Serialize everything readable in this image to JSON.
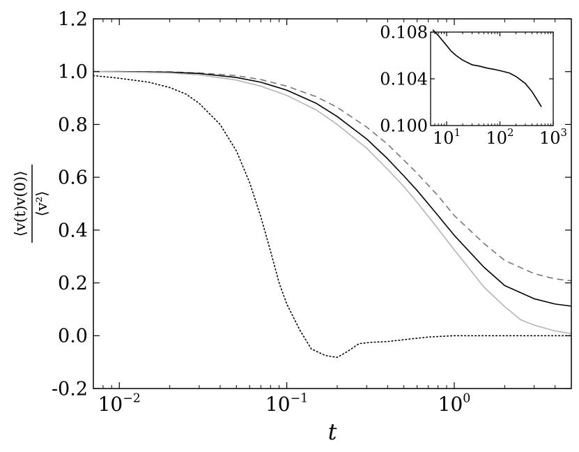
{
  "chart_data": [
    {
      "type": "line",
      "xlabel": "t",
      "ylabel": "⟨v(t)v(0)⟩ / ⟨v²⟩",
      "xscale": "log",
      "xlim": [
        0.007,
        5.0
      ],
      "ylim": [
        -0.2,
        1.2
      ],
      "yticks": [
        -0.2,
        0.0,
        0.2,
        0.4,
        0.6,
        0.8,
        1.0,
        1.2
      ],
      "ytick_labels": [
        "-0.2",
        "0.0",
        "0.2",
        "0.4",
        "0.6",
        "0.8",
        "1.0",
        "1.2"
      ],
      "xticks": [
        0.01,
        0.1,
        1.0
      ],
      "xtick_labels": [
        {
          "base": "10",
          "exp": "−2"
        },
        {
          "base": "10",
          "exp": "−1"
        },
        {
          "base": "10",
          "exp": "0"
        }
      ],
      "grid": false,
      "series": [
        {
          "style": "dashed",
          "color": "#777777",
          "points": [
            [
              0.007,
              1.0
            ],
            [
              0.01,
              1.0
            ],
            [
              0.02,
              0.999
            ],
            [
              0.03,
              0.995
            ],
            [
              0.05,
              0.985
            ],
            [
              0.07,
              0.97
            ],
            [
              0.1,
              0.945
            ],
            [
              0.15,
              0.905
            ],
            [
              0.2,
              0.865
            ],
            [
              0.3,
              0.79
            ],
            [
              0.4,
              0.725
            ],
            [
              0.5,
              0.665
            ],
            [
              0.6,
              0.615
            ],
            [
              0.8,
              0.53
            ],
            [
              1.0,
              0.455
            ],
            [
              1.5,
              0.35
            ],
            [
              2.0,
              0.285
            ],
            [
              3.0,
              0.235
            ],
            [
              4.0,
              0.215
            ],
            [
              5.0,
              0.208
            ]
          ]
        },
        {
          "style": "solid",
          "color": "#000000",
          "points": [
            [
              0.007,
              1.0
            ],
            [
              0.01,
              1.0
            ],
            [
              0.02,
              0.998
            ],
            [
              0.03,
              0.993
            ],
            [
              0.05,
              0.978
            ],
            [
              0.07,
              0.96
            ],
            [
              0.1,
              0.93
            ],
            [
              0.15,
              0.88
            ],
            [
              0.2,
              0.83
            ],
            [
              0.3,
              0.745
            ],
            [
              0.4,
              0.67
            ],
            [
              0.5,
              0.605
            ],
            [
              0.6,
              0.55
            ],
            [
              0.8,
              0.455
            ],
            [
              1.0,
              0.38
            ],
            [
              1.5,
              0.26
            ],
            [
              2.0,
              0.19
            ],
            [
              3.0,
              0.14
            ],
            [
              4.0,
              0.12
            ],
            [
              5.0,
              0.112
            ]
          ]
        },
        {
          "style": "solid",
          "color": "#b4b4b4",
          "points": [
            [
              0.007,
              1.0
            ],
            [
              0.01,
              0.999
            ],
            [
              0.02,
              0.995
            ],
            [
              0.03,
              0.988
            ],
            [
              0.05,
              0.968
            ],
            [
              0.07,
              0.945
            ],
            [
              0.1,
              0.91
            ],
            [
              0.15,
              0.855
            ],
            [
              0.2,
              0.8
            ],
            [
              0.3,
              0.71
            ],
            [
              0.4,
              0.63
            ],
            [
              0.5,
              0.565
            ],
            [
              0.6,
              0.505
            ],
            [
              0.8,
              0.405
            ],
            [
              1.0,
              0.325
            ],
            [
              1.5,
              0.185
            ],
            [
              2.0,
              0.11
            ],
            [
              2.5,
              0.06
            ],
            [
              3.0,
              0.04
            ],
            [
              4.0,
              0.018
            ],
            [
              5.0,
              0.008
            ]
          ]
        },
        {
          "style": "dotted",
          "color": "#000000",
          "points": [
            [
              0.007,
              0.985
            ],
            [
              0.01,
              0.975
            ],
            [
              0.015,
              0.96
            ],
            [
              0.02,
              0.94
            ],
            [
              0.025,
              0.915
            ],
            [
              0.03,
              0.88
            ],
            [
              0.04,
              0.8
            ],
            [
              0.05,
              0.7
            ],
            [
              0.06,
              0.58
            ],
            [
              0.07,
              0.45
            ],
            [
              0.08,
              0.32
            ],
            [
              0.09,
              0.2
            ],
            [
              0.1,
              0.12
            ],
            [
              0.12,
              0.02
            ],
            [
              0.14,
              -0.05
            ],
            [
              0.17,
              -0.075
            ],
            [
              0.2,
              -0.082
            ],
            [
              0.23,
              -0.06
            ],
            [
              0.27,
              -0.03
            ],
            [
              0.32,
              -0.025
            ],
            [
              0.4,
              -0.022
            ],
            [
              0.5,
              -0.015
            ],
            [
              0.7,
              -0.005
            ],
            [
              1.0,
              0.0
            ],
            [
              1.5,
              0.0
            ],
            [
              2.0,
              0.0
            ],
            [
              3.0,
              0.0
            ],
            [
              5.0,
              0.0
            ]
          ]
        }
      ]
    },
    {
      "type": "line",
      "xscale": "log",
      "xlim": [
        5,
        1000
      ],
      "ylim": [
        0.1,
        0.108
      ],
      "yticks": [
        0.1,
        0.104,
        0.108
      ],
      "ytick_labels": [
        "0.100",
        "0.104",
        "0.108"
      ],
      "xticks": [
        10,
        100,
        1000
      ],
      "xtick_labels": [
        {
          "base": "10",
          "exp": "1"
        },
        {
          "base": "10",
          "exp": "2"
        },
        {
          "base": "10",
          "exp": "3"
        }
      ],
      "grid": false,
      "series": [
        {
          "style": "solid",
          "color": "#000000",
          "points": [
            [
              5.5,
              0.1082
            ],
            [
              7,
              0.1077
            ],
            [
              9,
              0.1071
            ],
            [
              12,
              0.1064
            ],
            [
              15,
              0.106
            ],
            [
              20,
              0.1056
            ],
            [
              30,
              0.1052
            ],
            [
              40,
              0.1051
            ],
            [
              60,
              0.1049
            ],
            [
              80,
              0.1048
            ],
            [
              100,
              0.1047
            ],
            [
              150,
              0.1045
            ],
            [
              200,
              0.1042
            ],
            [
              300,
              0.1036
            ],
            [
              400,
              0.1029
            ],
            [
              500,
              0.1022
            ],
            [
              600,
              0.1016
            ]
          ]
        }
      ]
    }
  ]
}
